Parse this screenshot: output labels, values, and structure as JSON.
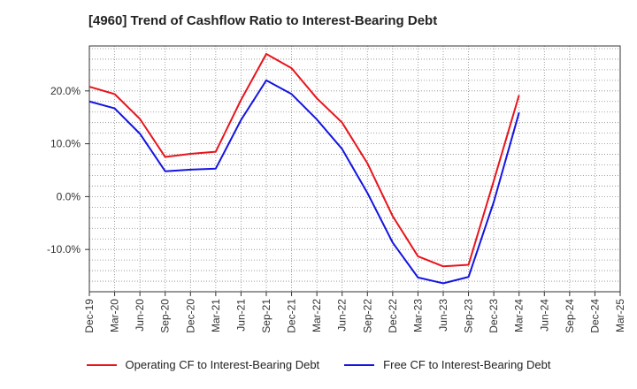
{
  "chart_data": {
    "type": "line",
    "title": "[4960]  Trend of Cashflow Ratio to Interest-Bearing Debt",
    "xlabel": "",
    "ylabel": "",
    "x": [
      "Dec-19",
      "Mar-20",
      "Jun-20",
      "Sep-20",
      "Dec-20",
      "Mar-21",
      "Jun-21",
      "Sep-21",
      "Dec-21",
      "Mar-22",
      "Jun-22",
      "Sep-22",
      "Dec-22",
      "Mar-23",
      "Jun-23",
      "Sep-23",
      "Dec-23",
      "Mar-24",
      "Jun-24",
      "Sep-24",
      "Dec-24",
      "Mar-25"
    ],
    "y_ticks": [
      20.0,
      10.0,
      0.0,
      -10.0
    ],
    "y_tick_labels": [
      "20.0%",
      "10.0%",
      "0.0%",
      "-10.0%"
    ],
    "ylim": [
      -18,
      28.5
    ],
    "grid": true,
    "legend_position": "bottom",
    "series": [
      {
        "name": "Operating CF to Interest-Bearing Debt",
        "color": "#e8141c",
        "values": [
          20.8,
          19.4,
          14.7,
          7.5,
          8.1,
          8.5,
          18.3,
          27.0,
          24.3,
          18.6,
          14.0,
          6.3,
          -3.7,
          -11.3,
          -13.2,
          -12.9,
          3.0,
          19.2,
          null,
          null,
          null,
          null
        ]
      },
      {
        "name": "Free CF to Interest-Bearing Debt",
        "color": "#1414e0",
        "values": [
          18.0,
          16.7,
          11.9,
          4.8,
          5.1,
          5.3,
          14.5,
          22.0,
          19.4,
          14.6,
          9.0,
          0.7,
          -8.7,
          -15.3,
          -16.4,
          -15.2,
          -1.0,
          15.9,
          null,
          null,
          null,
          null
        ]
      }
    ]
  }
}
